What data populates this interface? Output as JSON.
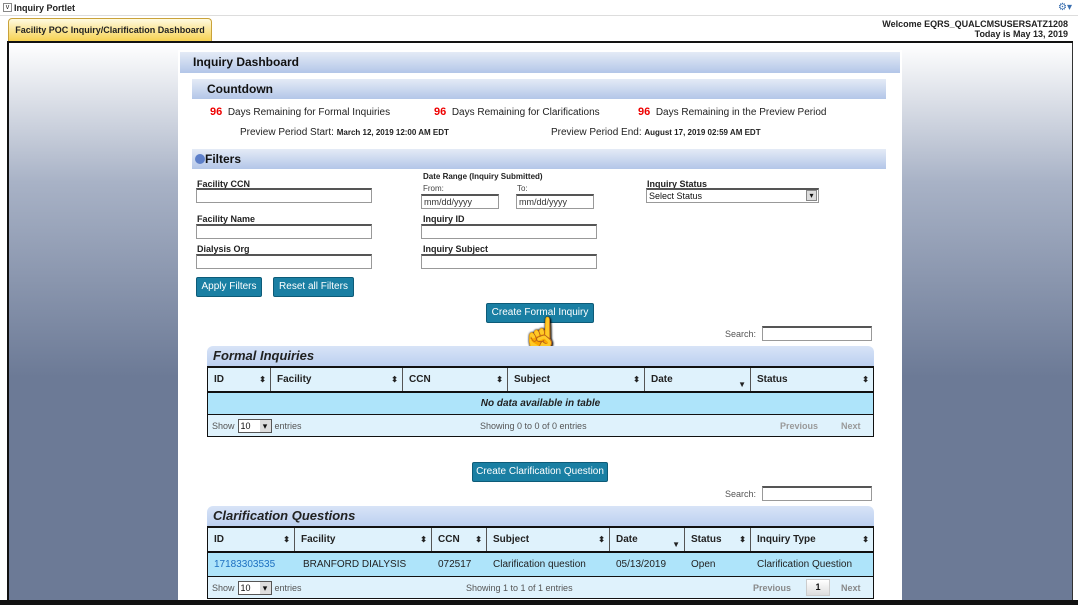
{
  "portlet": {
    "title": "Inquiry Portlet",
    "toggle": "v"
  },
  "tab": {
    "label": "Facility POC Inquiry/Clarification Dashboard"
  },
  "header": {
    "welcome": "Welcome EQRS_QUALCMSUSERSATZ1208",
    "today": "Today is May 13, 2019"
  },
  "dashboard": {
    "title": "Inquiry Dashboard"
  },
  "countdown": {
    "title": "Countdown",
    "items": [
      {
        "days": "96",
        "label": "Days Remaining for Formal Inquiries"
      },
      {
        "days": "96",
        "label": "Days Remaining for Clarifications"
      },
      {
        "days": "96",
        "label": "Days Remaining in the Preview Period"
      }
    ],
    "start_label": "Preview Period Start:",
    "start_value": "March 12, 2019 12:00 AM EDT",
    "end_label": "Preview Period End:",
    "end_value": "August 17, 2019 02:59 AM EDT"
  },
  "filters": {
    "title": "Filters",
    "ccn": "Facility CCN",
    "name": "Facility Name",
    "org": "Dialysis Org",
    "date_range": "Date Range (Inquiry Submitted)",
    "from": "From:",
    "to": "To:",
    "date_placeholder": "mm/dd/yyyy",
    "inquiry_id": "Inquiry ID",
    "subject": "Inquiry Subject",
    "status": "Inquiry Status",
    "status_value": "Select Status",
    "apply": "Apply Filters",
    "reset": "Reset all Filters"
  },
  "create_formal": "Create Formal Inquiry",
  "create_clar": "Create Clarification Question",
  "search_label": "Search:",
  "formal": {
    "title": "Formal Inquiries",
    "columns": [
      "ID",
      "Facility",
      "CCN",
      "Subject",
      "Date",
      "Status"
    ],
    "empty": "No data available in table",
    "show": "Show",
    "entries_count": "10",
    "entries": "entries",
    "info": "Showing 0 to 0 of 0 entries",
    "prev": "Previous",
    "next": "Next"
  },
  "clar": {
    "title": "Clarification Questions",
    "columns": [
      "ID",
      "Facility",
      "CCN",
      "Subject",
      "Date",
      "Status",
      "Inquiry Type"
    ],
    "rows": [
      [
        "17183303535",
        "BRANFORD DIALYSIS",
        "072517",
        "Clarification question",
        "05/13/2019",
        "Open",
        "Clarification Question"
      ]
    ],
    "show": "Show",
    "entries_count": "10",
    "entries": "entries",
    "info": "Showing 1 to 1 of 1 entries",
    "prev": "Previous",
    "page": "1",
    "next": "Next"
  }
}
